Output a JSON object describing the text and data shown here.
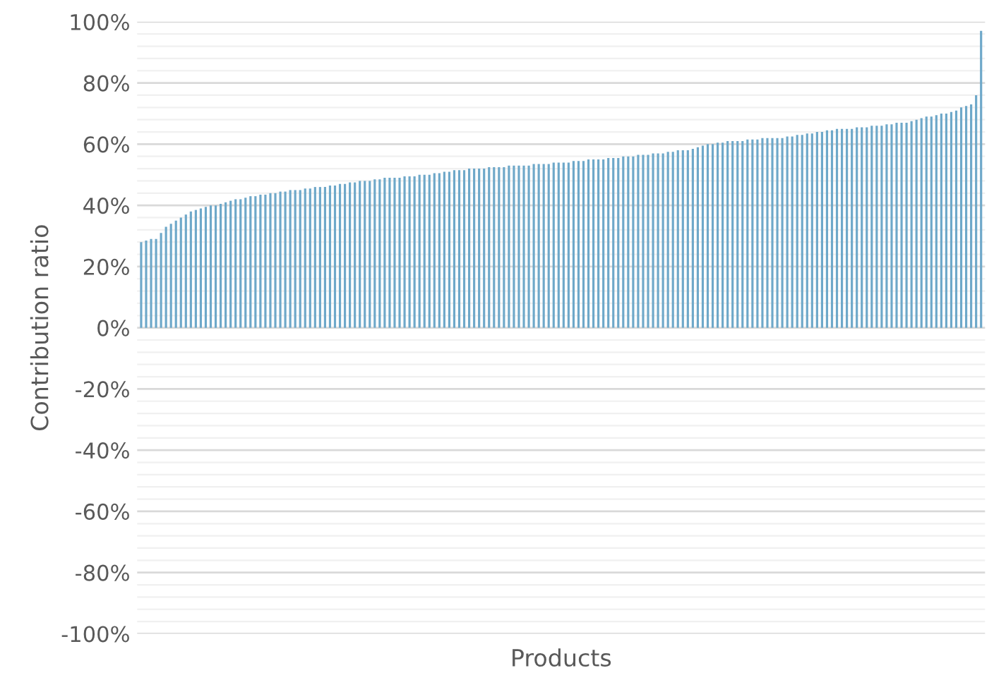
{
  "chart_data": {
    "type": "bar",
    "xlabel": "Products",
    "ylabel": "Contribution ratio",
    "categories": [
      null,
      null,
      null,
      null,
      null,
      null,
      null,
      null,
      null,
      null,
      null,
      null,
      null,
      null,
      null,
      null,
      null,
      null,
      null,
      null,
      null,
      null,
      null,
      null,
      null,
      null,
      null,
      null,
      null,
      null,
      null,
      null,
      null,
      null,
      null,
      null,
      null,
      null,
      null,
      null,
      null,
      null,
      null,
      null,
      null,
      null,
      null,
      null,
      null,
      null,
      null,
      null,
      null,
      null,
      null,
      null,
      null,
      null,
      null,
      null,
      null,
      null,
      null,
      null,
      null,
      null,
      null,
      null,
      null,
      null,
      null,
      null,
      null,
      null,
      null,
      null,
      null,
      null,
      null,
      null,
      null,
      null,
      null,
      null,
      null,
      null,
      null,
      null,
      null,
      null,
      null,
      null,
      null,
      null,
      null,
      null,
      null,
      null,
      null,
      null,
      null,
      null,
      null,
      null,
      null,
      null,
      null,
      null,
      null,
      null,
      null,
      null,
      null,
      null,
      null,
      null,
      null,
      null,
      null,
      null,
      null,
      null,
      null,
      null,
      null,
      null,
      null,
      null,
      null,
      null,
      null,
      null,
      null,
      null,
      null,
      null,
      null,
      null,
      null,
      null,
      null,
      null,
      null,
      null,
      null,
      null,
      null,
      null,
      null,
      null,
      null,
      null,
      null,
      null,
      null,
      null,
      null,
      null,
      null,
      null,
      null,
      null,
      null,
      null,
      null,
      null,
      null,
      null,
      null,
      null
    ],
    "values": [
      28,
      28.5,
      29,
      29,
      31,
      33,
      34,
      35,
      36,
      37,
      38,
      38.5,
      39,
      39.5,
      40,
      40,
      40.5,
      41,
      41.5,
      42,
      42,
      42.5,
      43,
      43,
      43.5,
      43.5,
      44,
      44,
      44.5,
      44.5,
      45,
      45,
      45,
      45.5,
      45.5,
      46,
      46,
      46,
      46.5,
      46.5,
      47,
      47,
      47.5,
      47.5,
      48,
      48,
      48,
      48.5,
      48.5,
      49,
      49,
      49,
      49,
      49.5,
      49.5,
      49.5,
      50,
      50,
      50,
      50.5,
      50.5,
      51,
      51,
      51.5,
      51.5,
      51.5,
      52,
      52,
      52,
      52,
      52.5,
      52.5,
      52.5,
      52.5,
      53,
      53,
      53,
      53,
      53,
      53.5,
      53.5,
      53.5,
      53.5,
      54,
      54,
      54,
      54,
      54.5,
      54.5,
      54.5,
      55,
      55,
      55,
      55,
      55.5,
      55.5,
      55.5,
      56,
      56,
      56,
      56.5,
      56.5,
      56.5,
      57,
      57,
      57,
      57.5,
      57.5,
      58,
      58,
      58,
      58.5,
      59,
      59.5,
      60,
      60,
      60.5,
      60.5,
      61,
      61,
      61,
      61,
      61.5,
      61.5,
      61.5,
      62,
      62,
      62,
      62,
      62,
      62.5,
      62.5,
      63,
      63,
      63.5,
      63.5,
      64,
      64,
      64.5,
      64.5,
      65,
      65,
      65,
      65,
      65.5,
      65.5,
      65.5,
      66,
      66,
      66,
      66.5,
      66.5,
      67,
      67,
      67,
      67.5,
      68,
      68.5,
      69,
      69,
      69.5,
      70,
      70,
      70.5,
      71,
      72,
      72.5,
      73,
      76,
      97
    ],
    "color": "#6ea8c9",
    "ylim": [
      -100,
      100
    ],
    "yticks": [
      {
        "value": -100,
        "label": "-100%"
      },
      {
        "value": -80,
        "label": "-80%"
      },
      {
        "value": -60,
        "label": "-60%"
      },
      {
        "value": -40,
        "label": "-40%"
      },
      {
        "value": -20,
        "label": "-20%"
      },
      {
        "value": 0,
        "label": "0%"
      },
      {
        "value": 20,
        "label": "20%"
      },
      {
        "value": 40,
        "label": "40%"
      },
      {
        "value": 60,
        "label": "60%"
      },
      {
        "value": 80,
        "label": "80%"
      },
      {
        "value": 100,
        "label": "100%"
      }
    ],
    "grid": "y"
  }
}
